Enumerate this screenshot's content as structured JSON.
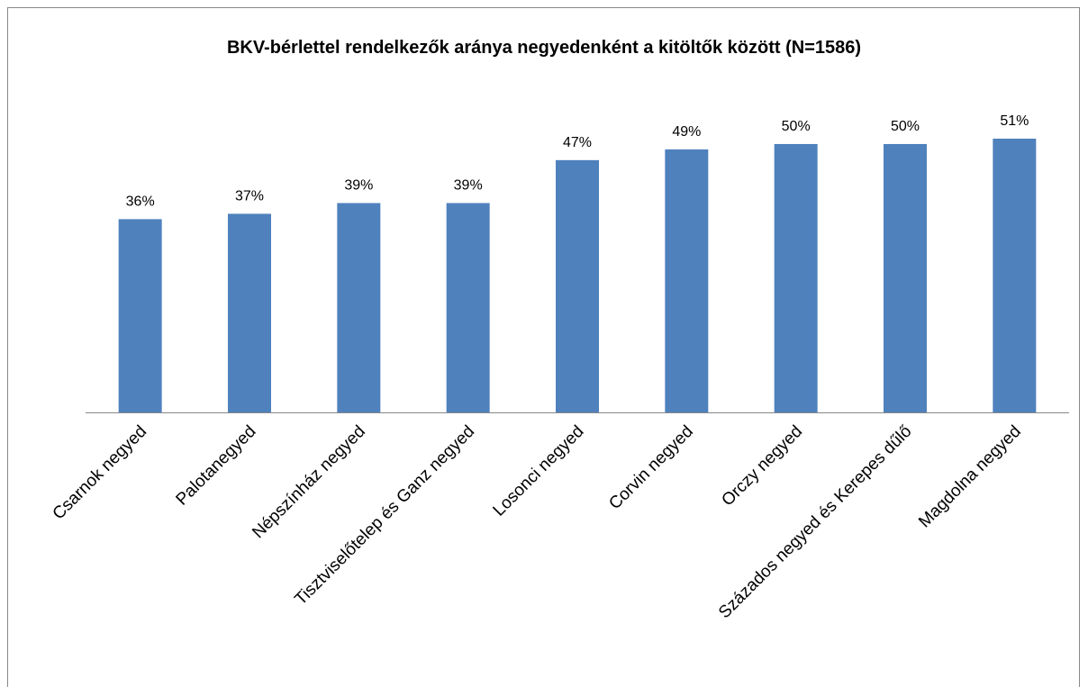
{
  "chart_data": {
    "type": "bar",
    "title": "BKV-bérlettel rendelkezők aránya negyedenként a kitöltők között (N=1586)",
    "categories": [
      "Csarnok negyed",
      "Palotanegyed",
      "Népszínház negyed",
      "Tisztviselőtelep és Ganz negyed",
      "Losonci negyed",
      "Corvin negyed",
      "Orczy negyed",
      "Százados negyed és Kerepes dűlő",
      "Magdolna negyed"
    ],
    "values": [
      36,
      37,
      39,
      39,
      47,
      49,
      50,
      50,
      51
    ],
    "value_labels": [
      "36%",
      "37%",
      "39%",
      "39%",
      "47%",
      "49%",
      "50%",
      "50%",
      "51%"
    ],
    "color": "#4f81bd"
  }
}
